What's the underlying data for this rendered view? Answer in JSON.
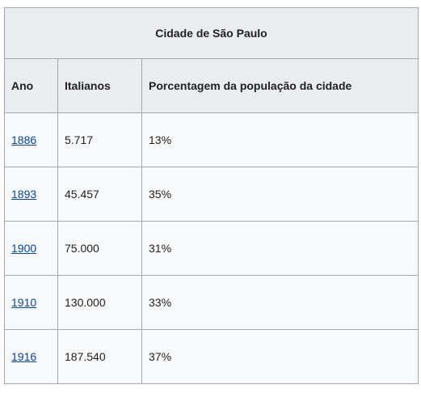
{
  "table": {
    "caption": "Cidade de São Paulo",
    "headers": [
      "Ano",
      "Italianos",
      "Porcentagem da população da cidade"
    ],
    "rows": [
      {
        "year": "1886",
        "italians": "5.717",
        "percent": "13%"
      },
      {
        "year": "1893",
        "italians": "45.457",
        "percent": "35%"
      },
      {
        "year": "1900",
        "italians": "75.000",
        "percent": "31%"
      },
      {
        "year": "1910",
        "italians": "130.000",
        "percent": "33%"
      },
      {
        "year": "1916",
        "italians": "187.540",
        "percent": "37%"
      }
    ]
  },
  "colors": {
    "link": "#0645ad",
    "header_bg": "#eaecf0",
    "cell_bg": "#f8f9fa",
    "border": "#a2a9b1"
  }
}
